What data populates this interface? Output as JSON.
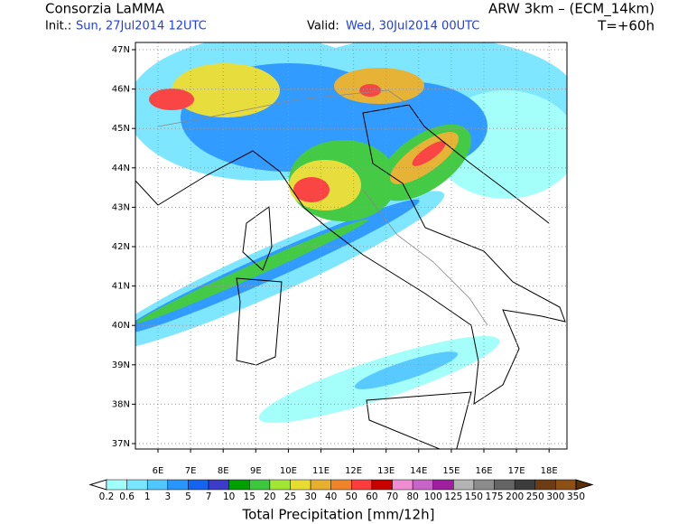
{
  "header": {
    "title": "Consorzia LaMMA",
    "model": "ARW 3km – (ECM_14km)",
    "init_label": "Init.:",
    "init": "Sun, 27Jul2014 12UTC",
    "valid_label": "Valid:",
    "valid": "Wed, 30Jul2014 00UTC",
    "lead": "T=+60h"
  },
  "map": {
    "lat_labels": [
      "47N",
      "46N",
      "45N",
      "44N",
      "43N",
      "42N",
      "41N",
      "40N",
      "39N",
      "38N",
      "37N"
    ],
    "lon_labels": [
      "6E",
      "7E",
      "8E",
      "9E",
      "10E",
      "11E",
      "12E",
      "13E",
      "14E",
      "15E",
      "16E",
      "17E",
      "18E"
    ]
  },
  "colorbar": {
    "levels": [
      0.2,
      0.6,
      1,
      3,
      5,
      7,
      10,
      15,
      20,
      25,
      30,
      40,
      50,
      60,
      70,
      80,
      100,
      125,
      150,
      175,
      200,
      250,
      300,
      350
    ],
    "colors": [
      "#ffffff",
      "#a0fffa",
      "#78e6ff",
      "#50c8ff",
      "#2896ff",
      "#1464f0",
      "#3c3cc8",
      "#00a000",
      "#3cc83c",
      "#a0e632",
      "#e6dc32",
      "#e6af2d",
      "#f08228",
      "#fa3c3c",
      "#c80000",
      "#f08cd2",
      "#c864c8",
      "#a01ea0",
      "#b4b4b4",
      "#8c8c8c",
      "#646464",
      "#3c3c3c",
      "#6e3c14",
      "#8c5014",
      "#5a3008"
    ],
    "label": "Total Precipitation [mm/12h]"
  }
}
